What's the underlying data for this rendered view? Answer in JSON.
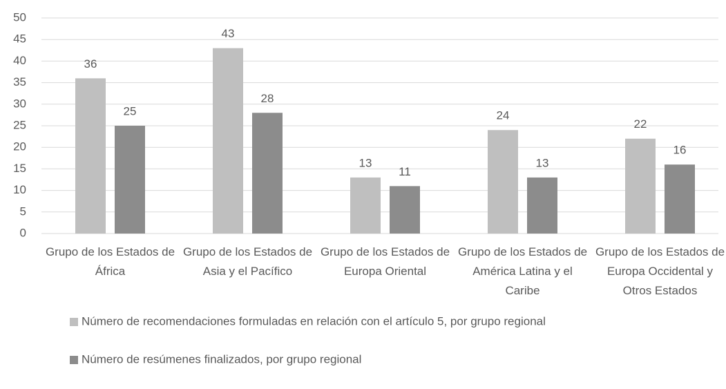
{
  "chart_data": {
    "type": "bar",
    "categories": [
      "Grupo de los Estados de África",
      "Grupo de los Estados de Asia y el Pacífico",
      "Grupo de los Estados de Europa Oriental",
      "Grupo de los Estados de América Latina y el Caribe",
      "Grupo de los Estados de Europa Occidental y Otros Estados"
    ],
    "series": [
      {
        "name": "Número de recomendaciones formuladas en relación con el artículo 5, por grupo regional",
        "color": "#bfbfbf",
        "values": [
          36,
          43,
          13,
          24,
          22
        ]
      },
      {
        "name": "Número de resúmenes finalizados, por grupo regional",
        "color": "#8c8c8c",
        "values": [
          25,
          28,
          11,
          13,
          16
        ]
      }
    ],
    "ylim": [
      0,
      50
    ],
    "yticks": [
      0,
      5,
      10,
      15,
      20,
      25,
      30,
      35,
      40,
      45,
      50
    ],
    "grid": true,
    "legend": "bottom"
  }
}
